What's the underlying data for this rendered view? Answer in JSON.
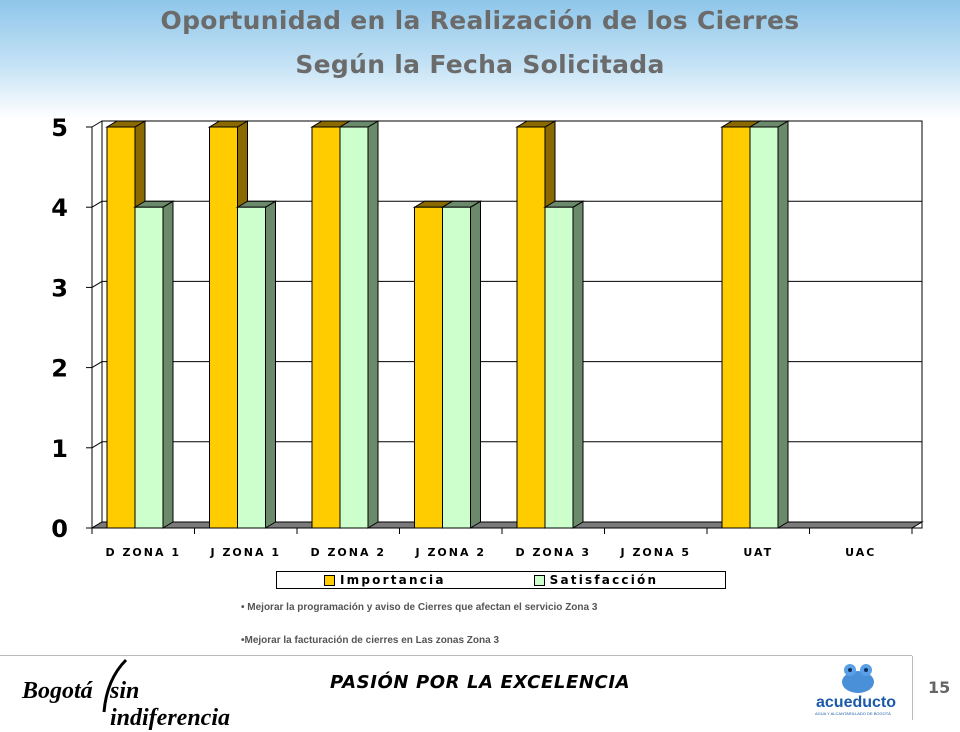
{
  "slide": {
    "title_line1": "Oportunidad en la Realización de los Cierres",
    "title_line2": "Según la Fecha Solicitada",
    "notes": [
      "• Mejorar la programación y aviso de Cierres que afectan el servicio Zona 3",
      "•Mejorar la facturación de cierres en Las zonas Zona 3"
    ],
    "footer": {
      "logo_bogota_word1": "Bogotá",
      "logo_bogota_word2": "sin indiferencia",
      "slogan": "PASIÓN POR LA EXCELENCIA",
      "logo_acueducto": "acueducto",
      "logo_acueducto_sub": "AGUA Y ALCANTARILLADO DE BOGOTÁ",
      "page_number": "15"
    }
  },
  "colors": {
    "importancia": "#ffcc00",
    "importancia_dark": "#8a6a00",
    "satisfaccion": "#ccffcc",
    "satisfaccion_dark": "#6b8a6b",
    "floor": "#7a7a7a"
  },
  "chart_data": {
    "type": "bar",
    "title": "Oportunidad en la Realización de los Cierres Según la Fecha Solicitada",
    "xlabel": "",
    "ylabel": "",
    "ylim": [
      0,
      5
    ],
    "yticks": [
      "0",
      "1",
      "2",
      "3",
      "4",
      "5"
    ],
    "grid": true,
    "legend_position": "bottom",
    "categories": [
      "D ZONA 1",
      "J ZONA 1",
      "D ZONA 2",
      "J ZONA 2",
      "D ZONA 3",
      "J ZONA 5",
      "UAT",
      "UAC"
    ],
    "series": [
      {
        "name": "Importancia",
        "values": [
          5,
          5,
          5,
          4,
          5,
          0,
          5,
          0
        ]
      },
      {
        "name": "Satisfacción",
        "values": [
          4,
          4,
          5,
          4,
          4,
          0,
          5,
          0
        ]
      }
    ]
  }
}
